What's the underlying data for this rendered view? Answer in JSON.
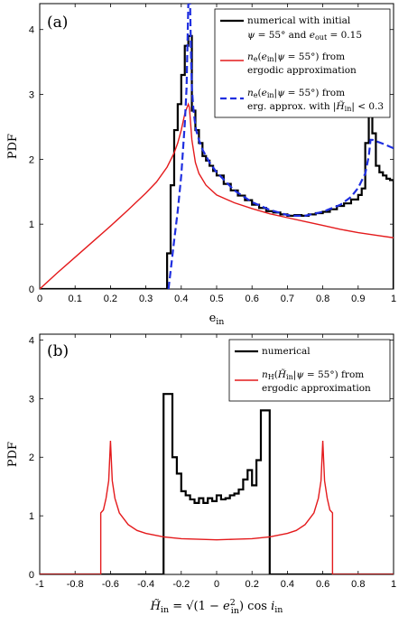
{
  "chart_data": [
    {
      "panel": "(a)",
      "type": "line",
      "xlabel": "e_in",
      "ylabel": "PDF",
      "xlim": [
        0,
        1
      ],
      "ylim": [
        0,
        4.4
      ],
      "xticks": [
        "0",
        "0.1",
        "0.2",
        "0.3",
        "0.4",
        "0.5",
        "0.6",
        "0.7",
        "0.8",
        "0.9",
        "1"
      ],
      "yticks": [
        "0",
        "1",
        "2",
        "3",
        "4"
      ],
      "grid": false,
      "legend_position": "top-right",
      "series": [
        {
          "name": "numerical with initial ψ = 55° and e_out = 0.15",
          "color": "#000000",
          "style": "stairs",
          "edges": [
            0.36,
            0.37,
            0.38,
            0.39,
            0.4,
            0.41,
            0.42,
            0.43,
            0.44,
            0.45,
            0.46,
            0.47,
            0.48,
            0.49,
            0.5,
            0.52,
            0.54,
            0.56,
            0.58,
            0.6,
            0.62,
            0.64,
            0.66,
            0.68,
            0.7,
            0.72,
            0.74,
            0.76,
            0.78,
            0.8,
            0.82,
            0.84,
            0.86,
            0.88,
            0.9,
            0.91,
            0.92,
            0.93,
            0.94,
            0.95,
            0.96,
            0.97,
            0.98,
            0.99,
            1.0
          ],
          "values": [
            0.55,
            1.6,
            2.45,
            2.85,
            3.3,
            3.75,
            3.9,
            2.75,
            2.45,
            2.25,
            2.05,
            1.98,
            1.9,
            1.82,
            1.75,
            1.62,
            1.52,
            1.44,
            1.37,
            1.3,
            1.25,
            1.2,
            1.18,
            1.15,
            1.13,
            1.14,
            1.13,
            1.15,
            1.17,
            1.19,
            1.23,
            1.28,
            1.32,
            1.38,
            1.45,
            1.55,
            2.25,
            2.75,
            2.4,
            1.9,
            1.8,
            1.75,
            1.7,
            1.68
          ]
        },
        {
          "name": "n_e(e_in|ψ = 55°) from ergodic approximation",
          "color": "#e41a1c",
          "style": "solid",
          "x": [
            0,
            0.05,
            0.1,
            0.15,
            0.2,
            0.25,
            0.3,
            0.33,
            0.36,
            0.38,
            0.39,
            0.4,
            0.41,
            0.415,
            0.42,
            0.423,
            0.43,
            0.44,
            0.45,
            0.47,
            0.5,
            0.55,
            0.6,
            0.65,
            0.7,
            0.75,
            0.8,
            0.85,
            0.9,
            0.95,
            1.0
          ],
          "y": [
            0,
            0.25,
            0.49,
            0.73,
            0.97,
            1.22,
            1.48,
            1.65,
            1.88,
            2.1,
            2.25,
            2.45,
            2.7,
            2.78,
            2.85,
            2.8,
            2.3,
            1.95,
            1.78,
            1.6,
            1.45,
            1.33,
            1.24,
            1.16,
            1.1,
            1.04,
            0.98,
            0.92,
            0.87,
            0.83,
            0.79
          ]
        },
        {
          "name": "n_e(e_in|ψ = 55°) from erg. approx. with |H̃_in| < 0.3",
          "color": "#1f2fe0",
          "style": "dashed",
          "x": [
            0.364,
            0.38,
            0.39,
            0.4,
            0.41,
            0.415,
            0.42,
            0.425,
            0.428,
            0.43,
            0.434,
            0.438,
            0.442,
            0.45,
            0.46,
            0.48,
            0.5,
            0.55,
            0.6,
            0.65,
            0.7,
            0.72,
            0.75,
            0.8,
            0.85,
            0.88,
            0.9,
            0.92,
            0.93,
            0.935,
            0.94,
            0.95,
            0.97,
            1.0
          ],
          "y": [
            0,
            0.75,
            1.2,
            1.75,
            2.55,
            3.1,
            4.4,
            4.4,
            3.5,
            3.1,
            2.8,
            2.6,
            2.45,
            2.3,
            2.15,
            1.95,
            1.8,
            1.52,
            1.34,
            1.22,
            1.14,
            1.13,
            1.13,
            1.19,
            1.3,
            1.42,
            1.56,
            1.78,
            2.05,
            2.3,
            2.3,
            2.28,
            2.24,
            2.17
          ]
        }
      ]
    },
    {
      "panel": "(b)",
      "type": "line",
      "xlabel": "H̃_in = √(1 − e_in²) cos i_in",
      "ylabel": "PDF",
      "xlim": [
        -1,
        1
      ],
      "ylim": [
        0,
        4.1
      ],
      "xticks": [
        "-1",
        "-0.8",
        "-0.6",
        "-0.4",
        "-0.2",
        "0",
        "0.2",
        "0.4",
        "0.6",
        "0.8",
        "1"
      ],
      "yticks": [
        "0",
        "1",
        "2",
        "3",
        "4"
      ],
      "grid": false,
      "legend_position": "top-right",
      "series": [
        {
          "name": "numerical",
          "color": "#000000",
          "style": "stairs",
          "edges": [
            -0.3,
            -0.25,
            -0.225,
            -0.2,
            -0.175,
            -0.15,
            -0.125,
            -0.1,
            -0.075,
            -0.05,
            -0.025,
            0,
            0.025,
            0.05,
            0.075,
            0.1,
            0.125,
            0.15,
            0.175,
            0.2,
            0.225,
            0.25,
            0.3
          ],
          "values": [
            3.08,
            2.0,
            1.72,
            1.42,
            1.35,
            1.28,
            1.22,
            1.3,
            1.22,
            1.3,
            1.25,
            1.35,
            1.28,
            1.3,
            1.35,
            1.38,
            1.45,
            1.62,
            1.78,
            1.52,
            1.95,
            2.8
          ]
        },
        {
          "name": "n_H(H̃_in|ψ = 55°) from ergodic approximation",
          "color": "#e41a1c",
          "style": "solid",
          "x": [
            -1,
            -0.655,
            -0.655,
            -0.64,
            -0.625,
            -0.61,
            -0.6,
            -0.59,
            -0.575,
            -0.55,
            -0.5,
            -0.45,
            -0.4,
            -0.3,
            -0.2,
            -0.1,
            0,
            0.1,
            0.2,
            0.3,
            0.4,
            0.45,
            0.5,
            0.55,
            0.575,
            0.59,
            0.6,
            0.61,
            0.625,
            0.64,
            0.655,
            0.655,
            1
          ],
          "y": [
            0,
            0,
            1.05,
            1.1,
            1.3,
            1.6,
            2.28,
            1.6,
            1.3,
            1.05,
            0.85,
            0.75,
            0.7,
            0.64,
            0.61,
            0.6,
            0.59,
            0.6,
            0.61,
            0.64,
            0.7,
            0.75,
            0.85,
            1.05,
            1.3,
            1.6,
            2.28,
            1.6,
            1.3,
            1.1,
            1.05,
            0,
            0
          ]
        }
      ]
    }
  ]
}
